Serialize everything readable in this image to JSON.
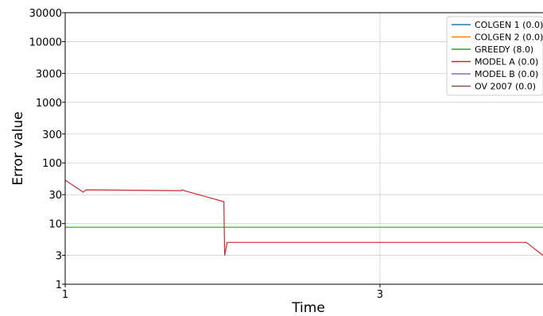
{
  "chart_data": {
    "type": "line",
    "xlabel": "Time",
    "ylabel": "Error value",
    "xscale": "log",
    "yscale": "log",
    "xlim": [
      1,
      5.3
    ],
    "ylim": [
      1,
      30000
    ],
    "xticks": [
      1,
      3
    ],
    "xtick_labels": [
      "1",
      "3"
    ],
    "yticks": [
      1,
      3,
      10,
      30,
      100,
      300,
      1000,
      3000,
      10000,
      30000
    ],
    "ytick_labels": [
      "1",
      "3",
      "10",
      "30",
      "100",
      "300",
      "1000",
      "3000",
      "10000",
      "30000"
    ],
    "grid": true,
    "legend_position": "top-right",
    "series": [
      {
        "name": "COLGEN 1 (0.0)",
        "color": "#1f77b4",
        "x": [],
        "y": []
      },
      {
        "name": "COLGEN 2 (0.0)",
        "color": "#ff7f0e",
        "x": [],
        "y": []
      },
      {
        "name": "GREEDY (8.0)",
        "color": "#2ca02c",
        "x": [
          1,
          5.3
        ],
        "y": [
          8.7,
          8.7
        ]
      },
      {
        "name": "MODEL A (0.0)",
        "color": "#d62728",
        "x": [
          1,
          1.065,
          1.075,
          1.5,
          1.505,
          1.515,
          1.74,
          1.745,
          1.76,
          5.0,
          5.3
        ],
        "y": [
          52,
          33,
          36,
          35,
          36,
          35,
          23,
          3.0,
          4.9,
          4.9,
          3.0
        ]
      },
      {
        "name": "MODEL B (0.0)",
        "color": "#9467bd",
        "x": [],
        "y": []
      },
      {
        "name": "OV 2007 (0.0)",
        "color": "#8c564b",
        "x": [],
        "y": []
      }
    ]
  }
}
